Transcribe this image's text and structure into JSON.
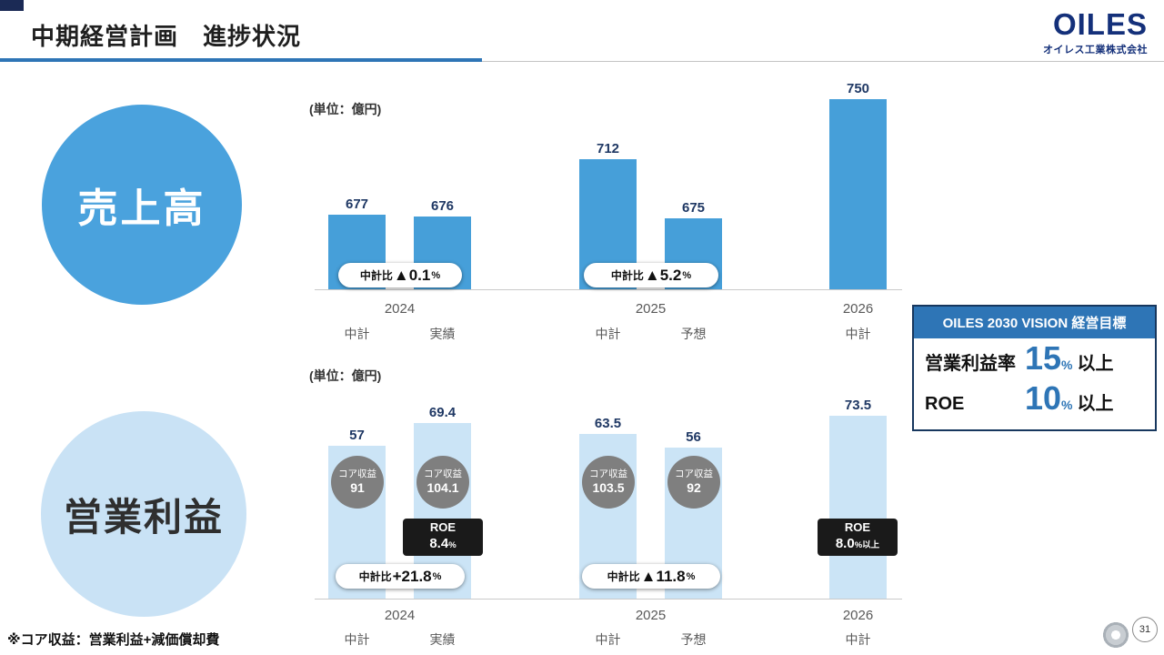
{
  "header": {
    "title": "中期経営計画　進捗状況",
    "logo_brand": "OILES",
    "logo_company": "オイレス工業株式会社"
  },
  "sections": {
    "sales_label": "売上高",
    "profit_label": "営業利益"
  },
  "unit_label": "(単位：億円)",
  "vision_box": {
    "title": "OILES 2030 VISION 経営目標",
    "rows": [
      {
        "label": "営業利益率",
        "value": "15",
        "unit": "%",
        "suffix": "以上"
      },
      {
        "label": "ROE",
        "value": "10",
        "unit": "%",
        "suffix": "以上"
      }
    ]
  },
  "footnote": "※コア収益：営業利益+減価償却費",
  "page_number": "31",
  "colors": {
    "accent_blue": "#2e75b6",
    "sales_bar": "#469fd9",
    "profit_bar": "#cbe4f6",
    "navy": "#17375e",
    "core_circle_gray": "#7f7f7f",
    "roe_badge_black": "#1a1a1a"
  },
  "chart_data": [
    {
      "id": "sales",
      "type": "bar",
      "title": "売上高",
      "unit": "億円",
      "ylim": [
        630,
        760
      ],
      "groups": [
        {
          "year": "2024",
          "bars": [
            {
              "label": "中計",
              "value": 677
            },
            {
              "label": "実績",
              "value": 676
            }
          ],
          "comparison": {
            "prefix": "中計比",
            "delta": "▲0.1",
            "unit": "%"
          }
        },
        {
          "year": "2025",
          "bars": [
            {
              "label": "中計",
              "value": 712
            },
            {
              "label": "予想",
              "value": 675
            }
          ],
          "comparison": {
            "prefix": "中計比",
            "delta": "▲5.2",
            "unit": "%"
          }
        },
        {
          "year": "2026",
          "bars": [
            {
              "label": "中計",
              "value": 750
            }
          ]
        }
      ]
    },
    {
      "id": "profit",
      "type": "bar",
      "title": "営業利益",
      "unit": "億円",
      "ylim": [
        0,
        80
      ],
      "groups": [
        {
          "year": "2024",
          "bars": [
            {
              "label": "中計",
              "value": 57,
              "core_label": "コア収益",
              "core_value": "91"
            },
            {
              "label": "実績",
              "value": 69.4,
              "core_label": "コア収益",
              "core_value": "104.1"
            }
          ],
          "comparison": {
            "prefix": "中計比",
            "delta": "+21.8",
            "unit": "%"
          },
          "roe": {
            "label": "ROE",
            "value": "8.4",
            "unit": "%"
          }
        },
        {
          "year": "2025",
          "bars": [
            {
              "label": "中計",
              "value": 63.5,
              "core_label": "コア収益",
              "core_value": "103.5"
            },
            {
              "label": "予想",
              "value": 56,
              "core_label": "コア収益",
              "core_value": "92"
            }
          ],
          "comparison": {
            "prefix": "中計比",
            "delta": "▲11.8",
            "unit": "%"
          }
        },
        {
          "year": "2026",
          "bars": [
            {
              "label": "中計",
              "value": 73.5
            }
          ],
          "roe": {
            "label": "ROE",
            "value": "8.0",
            "unit": "%以上"
          }
        }
      ]
    }
  ]
}
